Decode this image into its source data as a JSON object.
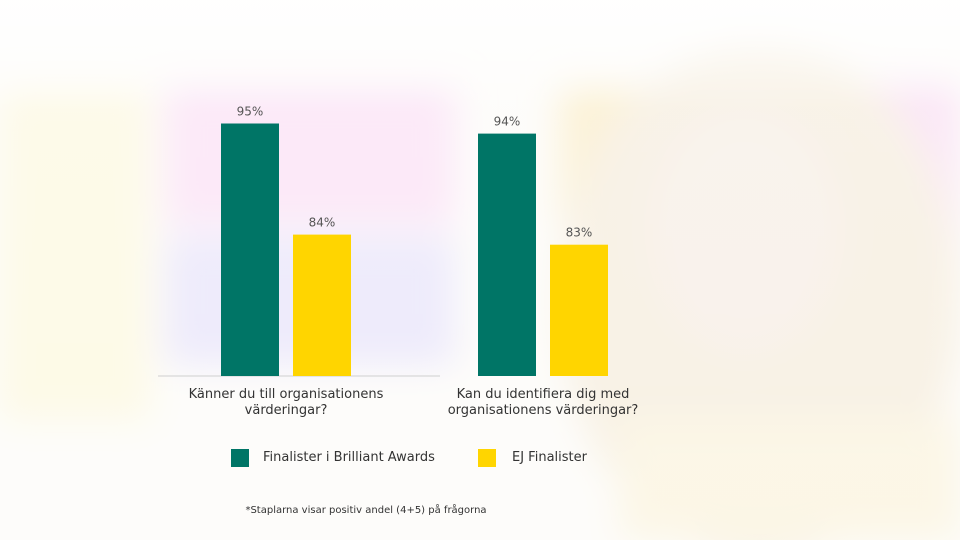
{
  "chart_data": {
    "type": "bar",
    "categories": [
      "Känner du till organisationens värderingar?",
      "Kan du identifiera dig med organisationens värderingar?"
    ],
    "series": [
      {
        "name": "Finalister i Brilliant Awards",
        "color": "#007566",
        "values": [
          95,
          94
        ],
        "value_labels": [
          "95%",
          "94%"
        ]
      },
      {
        "name": "EJ Finalister",
        "color": "#ffd500",
        "values": [
          84,
          83
        ],
        "value_labels": [
          "84%",
          "83%"
        ]
      }
    ],
    "ylim": [
      70,
      100
    ],
    "footnote": "*Staplarna visar positiv andel (4+5) på frågorna"
  }
}
